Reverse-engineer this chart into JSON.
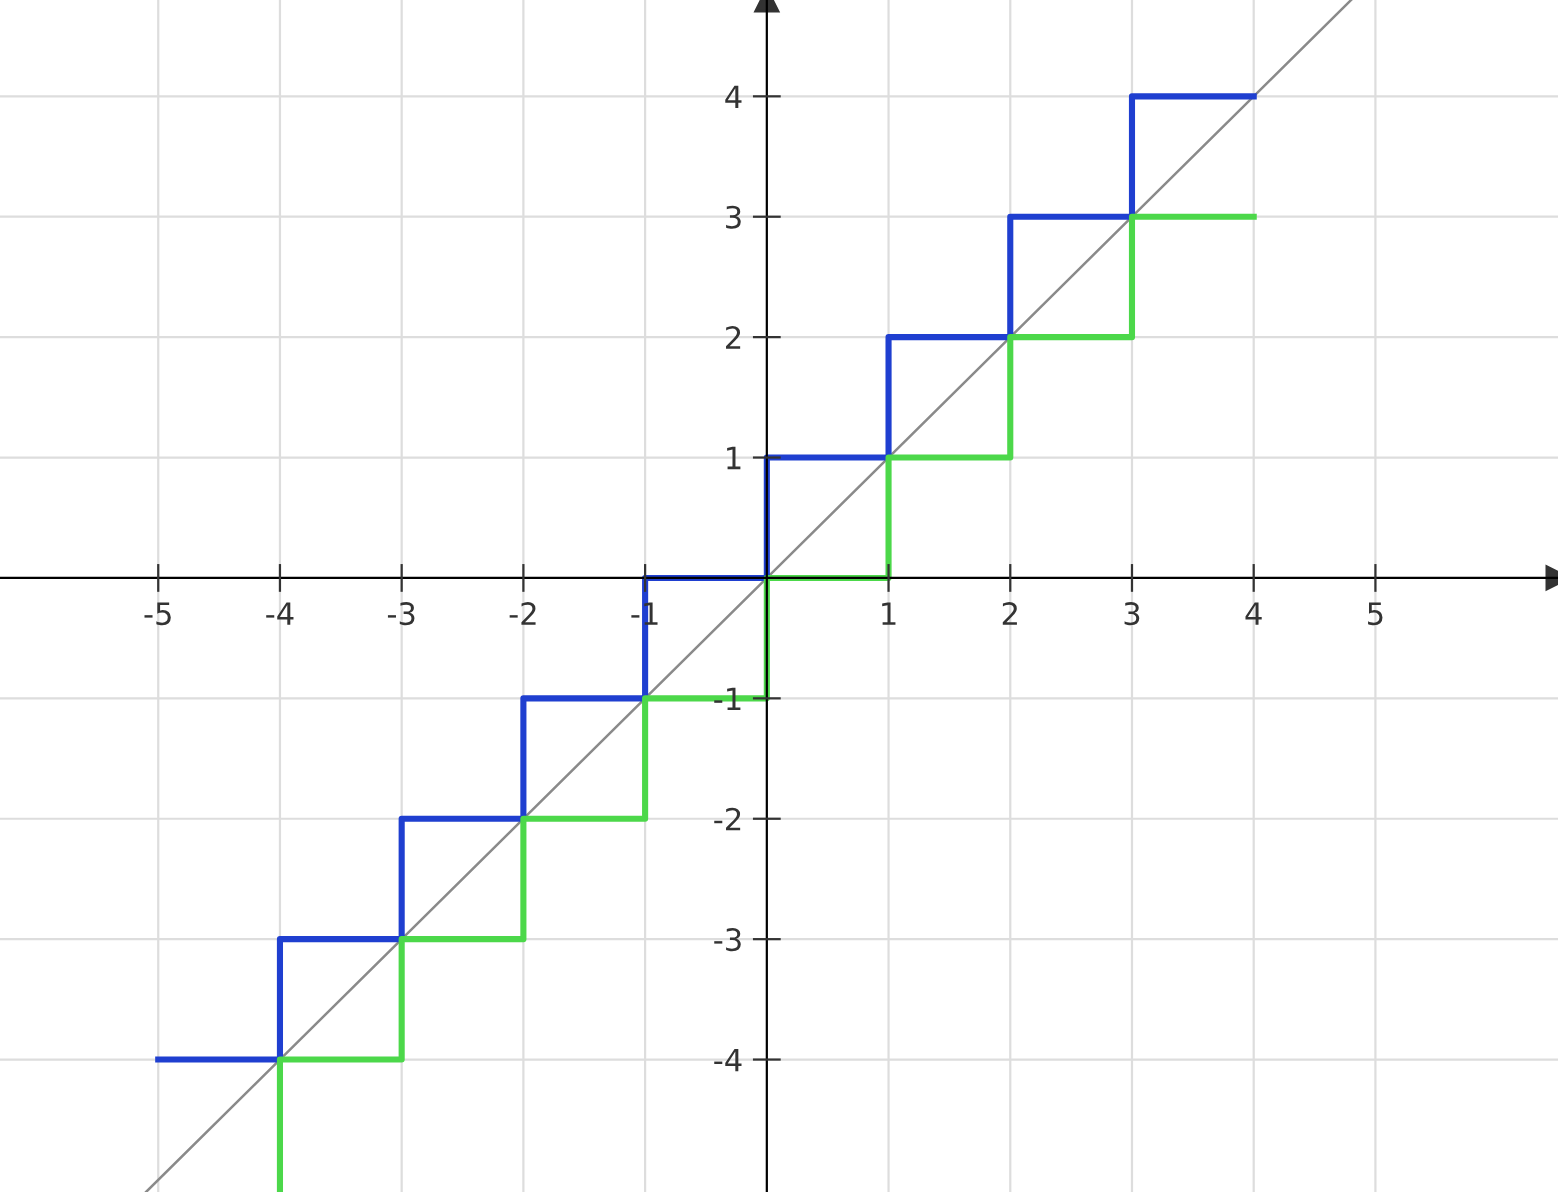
{
  "chart_data": {
    "type": "step",
    "xlim": [
      -6.3,
      6.5
    ],
    "ylim": [
      -5.1,
      4.8
    ],
    "xticks": [
      -5,
      -4,
      -3,
      -2,
      -1,
      1,
      2,
      3,
      4,
      5
    ],
    "yticks": [
      -4,
      -3,
      -2,
      -1,
      1,
      2,
      3,
      4
    ],
    "grid": true,
    "line_style": "solid",
    "series": [
      {
        "color": "#1f3fd0",
        "x": [
          -5,
          -4,
          -3,
          -2,
          -1,
          0,
          1,
          2,
          3,
          4
        ],
        "values": [
          -4,
          -3,
          -2,
          -1,
          0,
          1,
          2,
          3,
          4,
          4
        ]
      },
      {
        "color": "#4cd84a",
        "x": [
          -4,
          -4,
          -3,
          -2,
          -1,
          0,
          1,
          2,
          3,
          4
        ],
        "values": [
          -5.1,
          -4,
          -3,
          -2,
          -1,
          0,
          1,
          2,
          3,
          3
        ]
      },
      {
        "type": "line",
        "color": "#8a8a8a",
        "x": [
          -5.1,
          4.8
        ],
        "values": [
          -5.1,
          4.8
        ]
      }
    ]
  }
}
